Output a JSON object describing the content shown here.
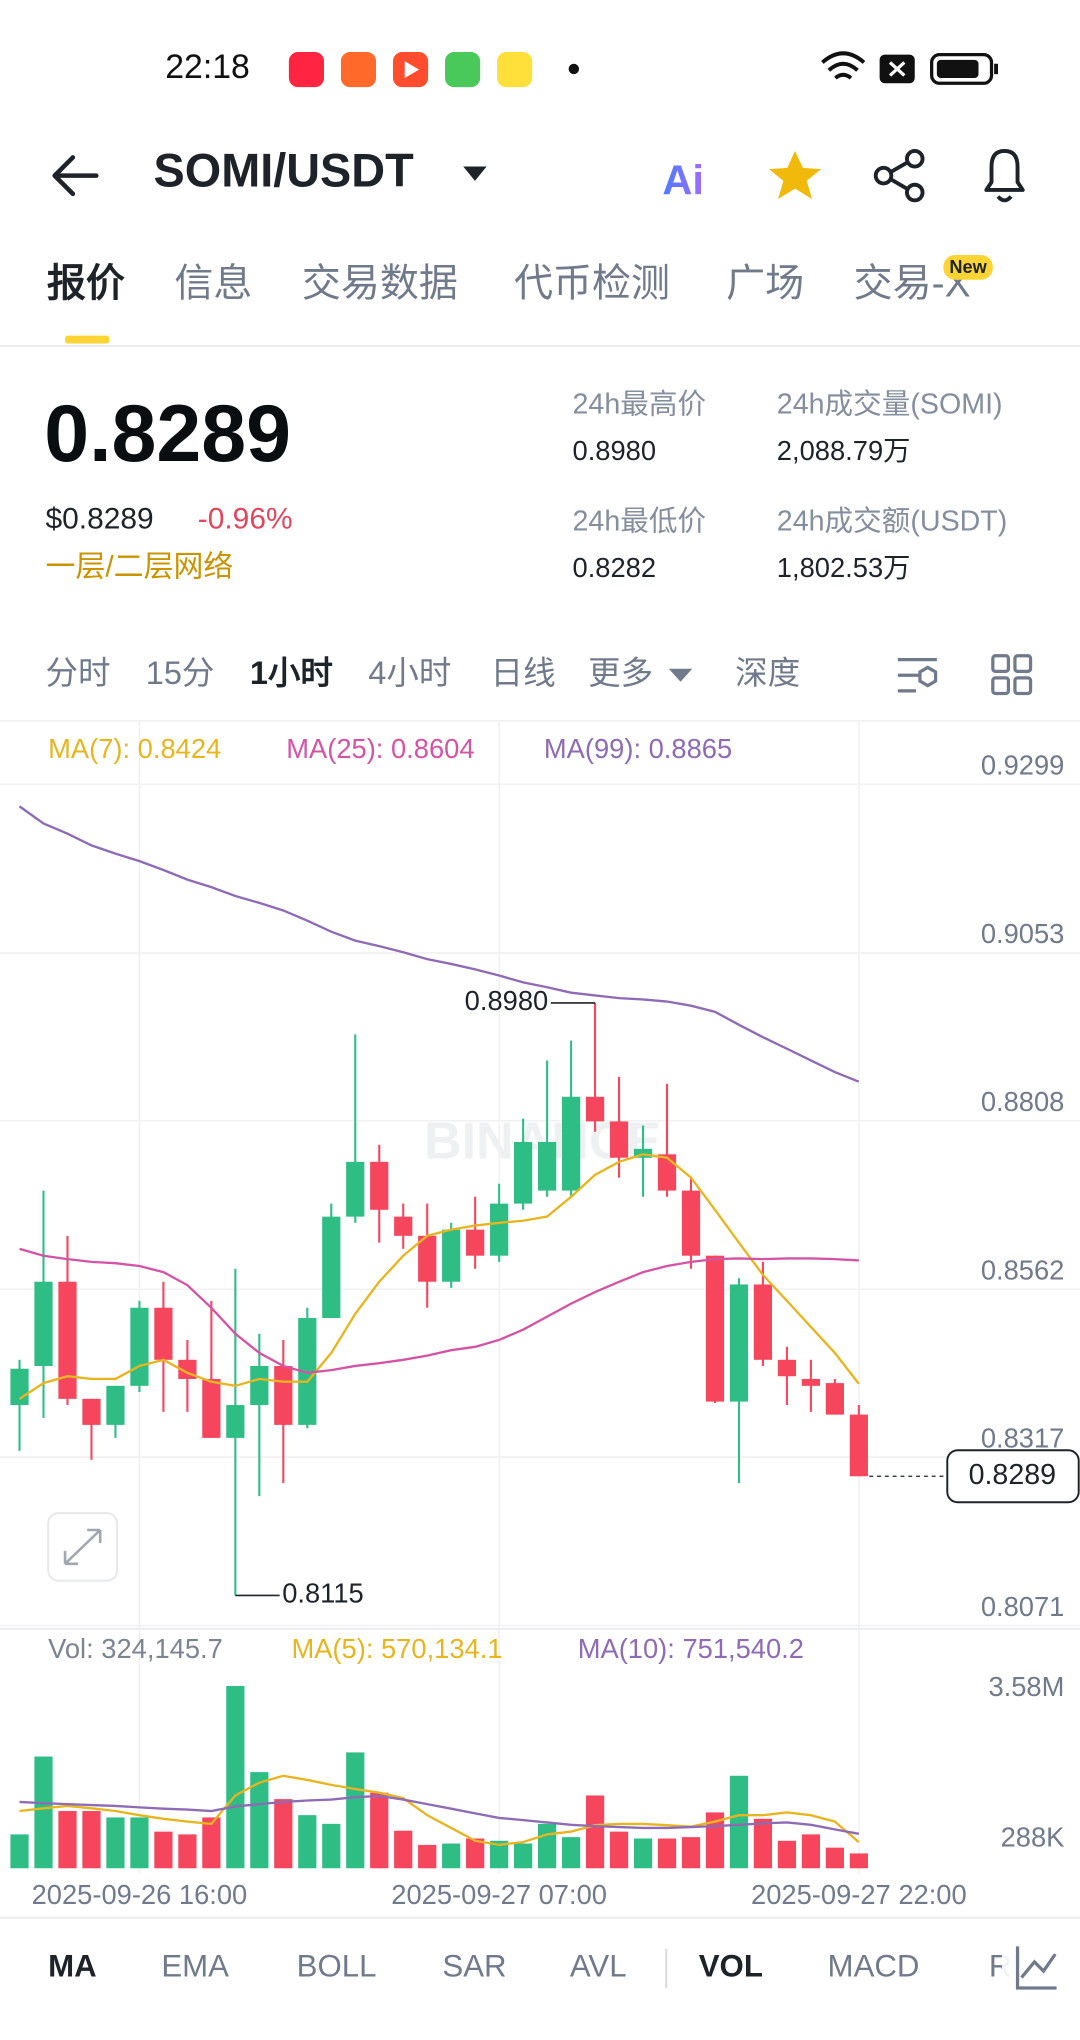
{
  "ui": {
    "status": {
      "time": "22:18"
    },
    "header": {
      "pair": "SOMI/USDT",
      "ai": "Ai"
    },
    "tabs": [
      "报价",
      "信息",
      "交易数据",
      "代币检测",
      "广场",
      "交易-X"
    ],
    "tab_badge": "New",
    "price": {
      "last": "0.8289",
      "usd": "$0.8289",
      "change": "-0.96%",
      "tag": "一层/二层网络"
    },
    "stats": [
      {
        "label": "24h最高价",
        "value": "0.8980"
      },
      {
        "label": "24h成交量(SOMI)",
        "value": "2,088.79万"
      },
      {
        "label": "24h最低价",
        "value": "0.8282"
      },
      {
        "label": "24h成交额(USDT)",
        "value": "1,802.53万"
      }
    ],
    "intervals": [
      "分时",
      "15分",
      "1小时",
      "4小时",
      "日线",
      "更多",
      "深度"
    ],
    "indicators": [
      "MA",
      "EMA",
      "BOLL",
      "SAR",
      "AVL",
      "VOL",
      "MACD",
      "R"
    ],
    "watermark": "BINANCE"
  },
  "chart_data": {
    "type": "candlestick",
    "up_color": "#2ebd85",
    "down_color": "#f6465d",
    "ylim": [
      0.807,
      0.939
    ],
    "yticks": [
      0.9299,
      0.9053,
      0.8808,
      0.8562,
      0.8317,
      0.8071
    ],
    "grid": true,
    "categories": [
      null,
      null,
      null,
      null,
      null,
      "2025-09-26 16:00",
      null,
      null,
      null,
      null,
      null,
      null,
      null,
      null,
      null,
      null,
      null,
      null,
      null,
      null,
      "2025-09-27 07:00",
      null,
      null,
      null,
      null,
      null,
      null,
      null,
      null,
      null,
      null,
      null,
      null,
      null,
      null,
      "2025-09-27 22:00"
    ],
    "open": [
      0.8393,
      0.845,
      0.8573,
      0.8402,
      0.8364,
      0.8421,
      0.8535,
      0.8459,
      0.8431,
      0.8345,
      0.8393,
      0.845,
      0.8364,
      0.852,
      0.8668,
      0.8748,
      0.8668,
      0.864,
      0.8573,
      0.8649,
      0.8611,
      0.8687,
      0.8706,
      0.8706,
      0.8843,
      0.8807,
      0.8754,
      0.8759,
      0.8706,
      0.8611,
      0.8398,
      0.8569,
      0.8459,
      0.8431,
      0.8425,
      0.8379
    ],
    "high": [
      0.8459,
      0.8706,
      0.864,
      0.8402,
      0.8421,
      0.8545,
      0.8573,
      0.8488,
      0.8545,
      0.8592,
      0.8497,
      0.8488,
      0.8535,
      0.8687,
      0.8934,
      0.8773,
      0.8687,
      0.8687,
      0.8659,
      0.8697,
      0.8716,
      0.8811,
      0.8896,
      0.8925,
      0.898,
      0.8872,
      0.8801,
      0.8862,
      0.8725,
      0.8611,
      0.8578,
      0.8602,
      0.8478,
      0.8459,
      0.8431,
      0.8393
    ],
    "low": [
      0.8326,
      0.8374,
      0.8393,
      0.8313,
      0.8345,
      0.8412,
      0.8383,
      0.8383,
      0.8345,
      0.8115,
      0.826,
      0.8279,
      0.8359,
      0.852,
      0.8659,
      0.863,
      0.8621,
      0.8535,
      0.8564,
      0.8592,
      0.8602,
      0.8678,
      0.8697,
      0.8697,
      0.8792,
      0.8725,
      0.8697,
      0.8697,
      0.8592,
      0.8396,
      0.8279,
      0.845,
      0.8393,
      0.8383,
      0.8379,
      0.8289
    ],
    "close": [
      0.8446,
      0.8573,
      0.8402,
      0.8364,
      0.8421,
      0.8535,
      0.8459,
      0.8431,
      0.8345,
      0.8393,
      0.845,
      0.8364,
      0.852,
      0.8668,
      0.8748,
      0.8678,
      0.864,
      0.8573,
      0.8649,
      0.8611,
      0.8687,
      0.8777,
      0.8777,
      0.8843,
      0.8807,
      0.8754,
      0.8767,
      0.8706,
      0.8611,
      0.8398,
      0.8569,
      0.8459,
      0.8435,
      0.8421,
      0.8379,
      0.8289
    ],
    "high_label": "0.8980",
    "low_label": "0.8115",
    "last_label": "0.8289",
    "ma": [
      {
        "name": "MA(7): 0.8424",
        "color": "#e6b520",
        "values": [
          0.8402,
          0.8425,
          0.8435,
          0.8431,
          0.8431,
          0.845,
          0.8459,
          0.844,
          0.8427,
          0.8421,
          0.8431,
          0.8427,
          0.8427,
          0.8469,
          0.8526,
          0.8573,
          0.8611,
          0.864,
          0.8649,
          0.8655,
          0.8659,
          0.8662,
          0.8668,
          0.8697,
          0.8729,
          0.8748,
          0.8759,
          0.8754,
          0.8725,
          0.8678,
          0.863,
          0.8583,
          0.8545,
          0.8507,
          0.8469,
          0.8424
        ]
      },
      {
        "name": "MA(25): 0.8604",
        "color": "#d454a4",
        "values": [
          0.8621,
          0.8611,
          0.8606,
          0.8602,
          0.86,
          0.8596,
          0.8587,
          0.8568,
          0.8535,
          0.8497,
          0.8469,
          0.845,
          0.844,
          0.8444,
          0.845,
          0.8454,
          0.8459,
          0.8465,
          0.8473,
          0.8478,
          0.8488,
          0.8503,
          0.8522,
          0.8541,
          0.8558,
          0.8573,
          0.8587,
          0.8596,
          0.8602,
          0.8606,
          0.8607,
          0.8606,
          0.8607,
          0.8607,
          0.8606,
          0.8604
        ]
      },
      {
        "name": "MA(99): 0.8865",
        "color": "#8e6bb5",
        "values": [
          0.9267,
          0.9242,
          0.9227,
          0.921,
          0.9198,
          0.9187,
          0.9174,
          0.916,
          0.9149,
          0.9136,
          0.9126,
          0.9115,
          0.91,
          0.9084,
          0.9071,
          0.9063,
          0.9054,
          0.9044,
          0.9037,
          0.9029,
          0.902,
          0.901,
          0.9003,
          0.8995,
          0.8991,
          0.8987,
          0.8985,
          0.8982,
          0.8976,
          0.8967,
          0.8948,
          0.893,
          0.8913,
          0.8896,
          0.8879,
          0.8865
        ]
      }
    ],
    "volume": {
      "name": "Vol: 324,145.7",
      "color": "#7c8492",
      "ylim": [
        0,
        4290000
      ],
      "yticks": [
        {
          "value": 3580000,
          "label": "3.58M"
        },
        {
          "value": 288000,
          "label": "288K"
        }
      ],
      "values": [
        740000,
        2440000,
        1250000,
        1250000,
        1110000,
        1110000,
        800000,
        740000,
        1110000,
        3980000,
        2100000,
        1510000,
        1160000,
        970000,
        2530000,
        1650000,
        820000,
        510000,
        540000,
        650000,
        600000,
        540000,
        970000,
        680000,
        1590000,
        800000,
        650000,
        650000,
        680000,
        1220000,
        2020000,
        1080000,
        600000,
        740000,
        450000,
        324145.7
      ],
      "ma": [
        {
          "name": "MA(5): 570,134.1",
          "color": "#e6b520",
          "values": [
            1250000,
            1310000,
            1360000,
            1310000,
            1250000,
            1160000,
            1080000,
            1020000,
            970000,
            1590000,
            1870000,
            2020000,
            1930000,
            1820000,
            1730000,
            1650000,
            1530000,
            1160000,
            880000,
            600000,
            510000,
            570000,
            740000,
            800000,
            940000,
            970000,
            970000,
            940000,
            910000,
            1020000,
            1160000,
            1160000,
            1220000,
            1160000,
            1020000,
            570134.1
          ]
        },
        {
          "name": "MA(10): 751,540.2",
          "color": "#8e6bb5",
          "values": [
            1450000,
            1420000,
            1400000,
            1380000,
            1360000,
            1330000,
            1300000,
            1280000,
            1250000,
            1350000,
            1400000,
            1450000,
            1480000,
            1500000,
            1550000,
            1580000,
            1500000,
            1400000,
            1300000,
            1200000,
            1100000,
            1050000,
            1000000,
            950000,
            920000,
            900000,
            880000,
            880000,
            900000,
            920000,
            950000,
            980000,
            1000000,
            950000,
            850000,
            751540.2
          ]
        }
      ]
    }
  }
}
